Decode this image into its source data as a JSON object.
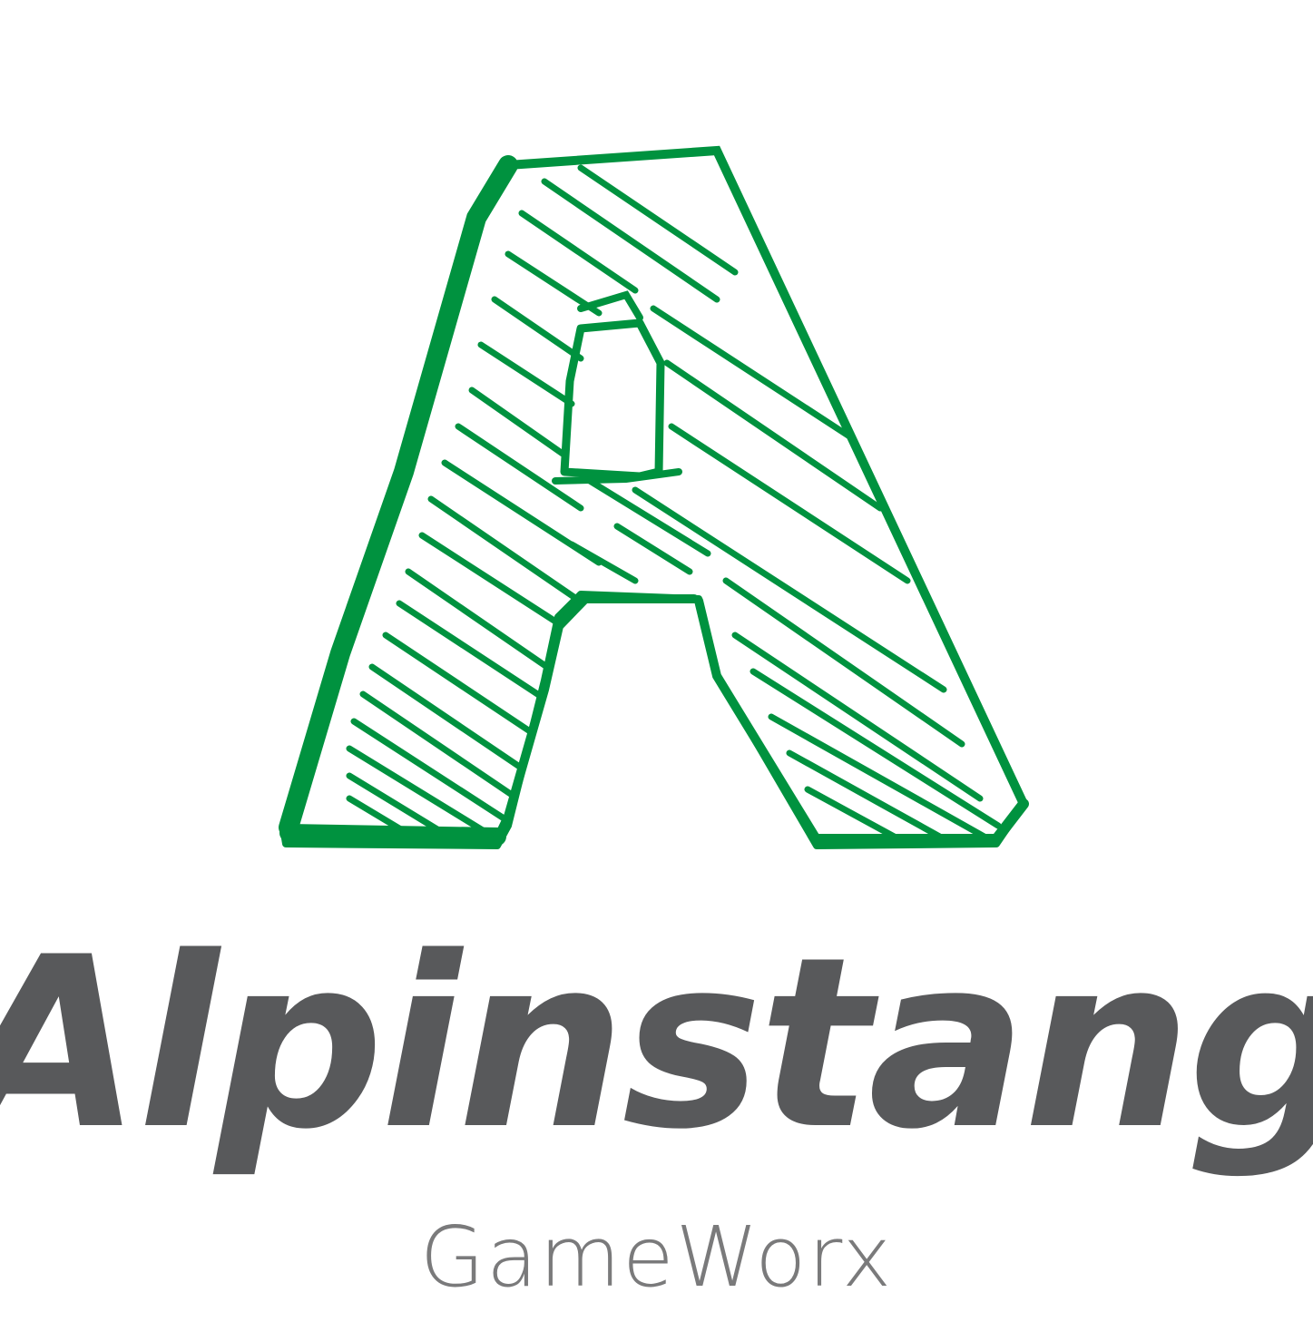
{
  "logo": {
    "brand_name": "Alpinstang",
    "tagline": "GameWorx",
    "mark_letter": "A",
    "mark_icon": "sketched-letter-a-icon"
  },
  "colors": {
    "mark_green": "#00923f",
    "wordmark_gray": "#58595b",
    "tagline_gray": "#7a7a7b",
    "background": "#ffffff"
  }
}
